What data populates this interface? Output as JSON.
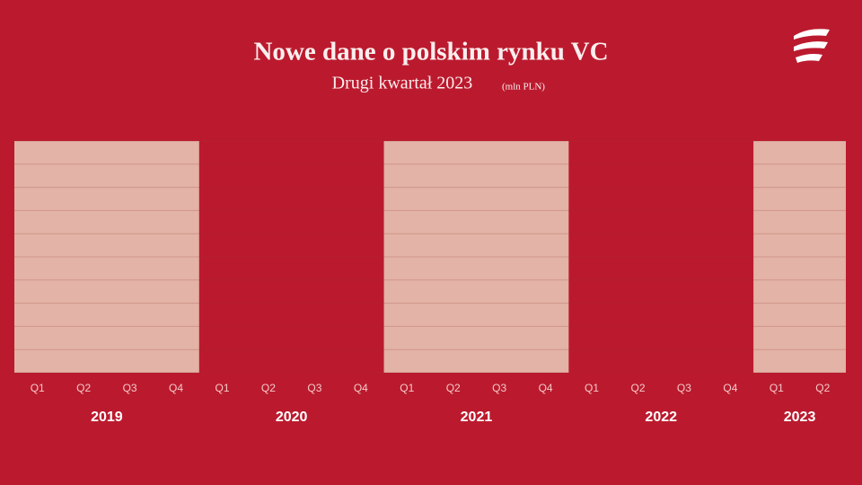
{
  "chart_data": {
    "type": "bar",
    "title": "Nowe dane o polskim rynku VC",
    "subtitle": "Drugi kwartał 2023",
    "unit": "(mln PLN)",
    "grid": true,
    "groups": [
      {
        "label": "2019",
        "categories": [
          "Q1",
          "Q2",
          "Q3",
          "Q4"
        ]
      },
      {
        "label": "2020",
        "categories": [
          "Q1",
          "Q2",
          "Q3",
          "Q4"
        ]
      },
      {
        "label": "2021",
        "categories": [
          "Q1",
          "Q2",
          "Q3",
          "Q4"
        ]
      },
      {
        "label": "2022",
        "categories": [
          "Q1",
          "Q2",
          "Q3",
          "Q4"
        ]
      },
      {
        "label": "2023",
        "categories": [
          "Q1",
          "Q2"
        ]
      }
    ]
  }
}
